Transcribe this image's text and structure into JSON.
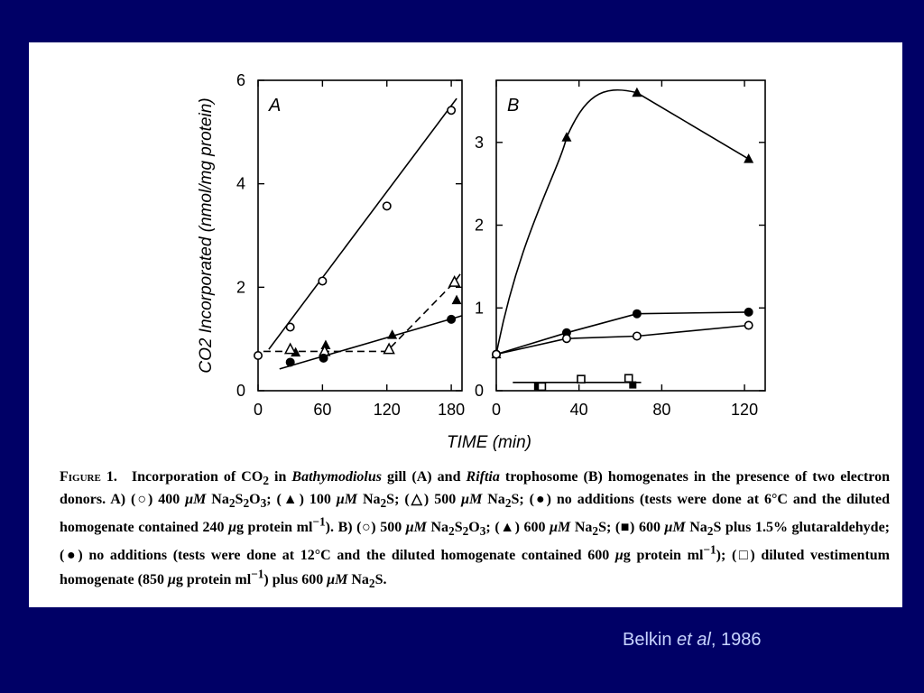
{
  "chart_data": [
    {
      "type": "scatter",
      "panel_label": "A",
      "ylabel": "CO2 Incorporated (nmol/mg protein)",
      "xlabel": "TIME (min)",
      "xlim": [
        0,
        190
      ],
      "ylim": [
        0,
        6
      ],
      "xticks": [
        0,
        60,
        120,
        180
      ],
      "yticks": [
        0,
        2,
        4,
        6
      ],
      "series": [
        {
          "marker": "open-circle",
          "line": "solid",
          "points": [
            [
              0,
              0.68
            ],
            [
              30,
              1.23
            ],
            [
              60,
              2.12
            ],
            [
              120,
              3.57
            ],
            [
              180,
              5.42
            ]
          ],
          "fit": [
            [
              10,
              0.8
            ],
            [
              185,
              5.65
            ]
          ]
        },
        {
          "marker": "filled-triangle",
          "line": "none",
          "points": [
            [
              35,
              0.74
            ],
            [
              63,
              0.88
            ],
            [
              125,
              1.08
            ],
            [
              185,
              1.75
            ]
          ]
        },
        {
          "marker": "open-triangle",
          "line": "dashed",
          "points": [
            [
              30,
              0.8
            ],
            [
              62,
              0.76
            ],
            [
              122,
              0.8
            ],
            [
              183,
              2.1
            ]
          ],
          "fit": [
            [
              5,
              0.76
            ],
            [
              120,
              0.76
            ],
            [
              183,
              2.1
            ],
            [
              190,
              2.3
            ]
          ]
        },
        {
          "marker": "filled-circle",
          "line": "solid",
          "points": [
            [
              30,
              0.55
            ],
            [
              61,
              0.63
            ],
            [
              180,
              1.38
            ]
          ],
          "fit": [
            [
              20,
              0.42
            ],
            [
              190,
              1.45
            ]
          ]
        }
      ]
    },
    {
      "type": "line",
      "panel_label": "B",
      "xlim": [
        0,
        130
      ],
      "ylim": [
        0,
        3.75
      ],
      "xticks": [
        0,
        40,
        80,
        120
      ],
      "yticks": [
        0,
        1,
        2,
        3
      ],
      "series": [
        {
          "marker": "filled-triangle",
          "line": "solid",
          "points": [
            [
              0,
              0.44
            ],
            [
              34,
              3.06
            ],
            [
              68,
              3.6
            ],
            [
              122,
              2.8
            ]
          ]
        },
        {
          "marker": "filled-circle",
          "line": "solid",
          "points": [
            [
              0,
              0.44
            ],
            [
              34,
              0.7
            ],
            [
              68,
              0.93
            ],
            [
              122,
              0.95
            ]
          ]
        },
        {
          "marker": "open-circle",
          "line": "solid",
          "points": [
            [
              0,
              0.44
            ],
            [
              34,
              0.63
            ],
            [
              68,
              0.66
            ],
            [
              122,
              0.79
            ]
          ]
        },
        {
          "marker": "filled-square",
          "line": "none",
          "points": [
            [
              20,
              0.05
            ],
            [
              66,
              0.07
            ]
          ]
        },
        {
          "marker": "open-square",
          "line": "none",
          "points": [
            [
              22,
              0.05
            ],
            [
              41,
              0.14
            ],
            [
              64,
              0.15
            ]
          ],
          "fit": [
            [
              8,
              0.1
            ],
            [
              70,
              0.1
            ]
          ]
        }
      ]
    }
  ],
  "caption": {
    "figure_label": "Figure 1.",
    "text_html": "Incorporation of CO<sub>2</sub> in <i>Bathymodiolus</i> gill (A) and <i>Riftia</i> trophosome (B) homogenates in the presence of two electron donors. A) (○) 400 <i>μM</i> Na<sub>2</sub>S<sub>2</sub>O<sub>3</sub>; (▲) 100 <i>μM</i> Na<sub>2</sub>S; (△) 500 <i>μM</i> Na<sub>2</sub>S; (●) no additions (tests were done at 6°C and the diluted homogenate contained 240 <i>μ</i>g protein ml<sup>−1</sup>). B) (○) 500 <i>μM</i> Na<sub>2</sub>S<sub>2</sub>O<sub>3</sub>; (▲) 600 <i>μM</i> Na<sub>2</sub>S; (■) 600 <i>μM</i> Na<sub>2</sub>S plus 1.5% glutaraldehyde; (●) no additions (tests were done at 12°C and the diluted homogenate contained 600 <i>μ</i>g protein ml<sup>−1</sup>); (□) diluted vestimentum homogenate (850 <i>μ</i>g protein ml<sup>−1</sup>) plus 600 <i>μM</i> Na<sub>2</sub>S."
  },
  "credit": {
    "prefix": "Belkin ",
    "italic": "et al",
    "suffix": ", 1986"
  }
}
